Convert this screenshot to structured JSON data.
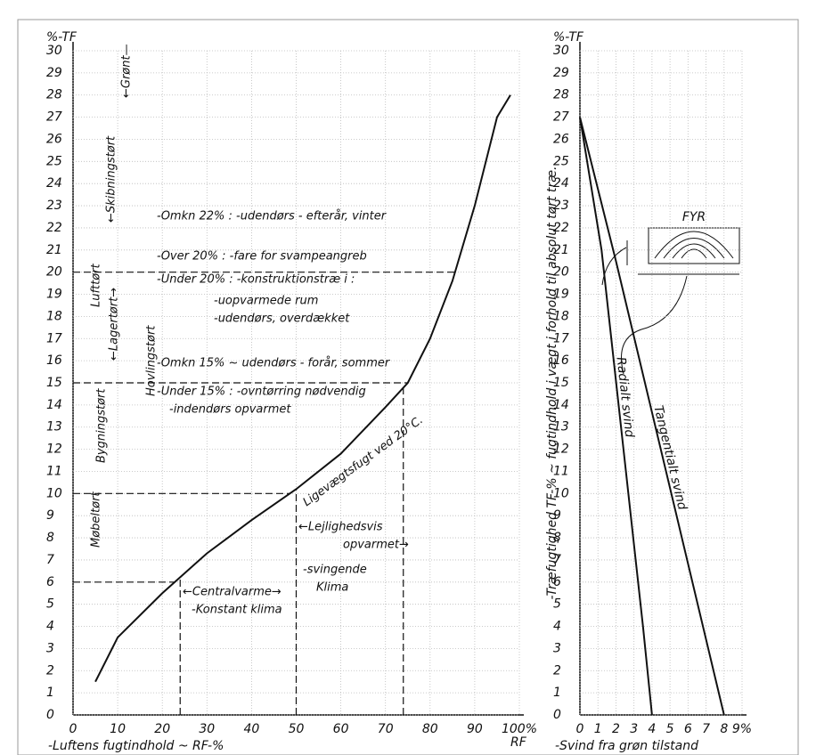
{
  "chart_data": [
    {
      "type": "line",
      "y_axis_title": "%-TF",
      "x_axis_title": "-Luftens fugtindhold ~ RF-%",
      "x_end_label": "RF",
      "x": [
        5,
        10,
        20,
        30,
        40,
        50,
        60,
        70,
        75,
        80,
        85,
        90,
        95,
        98
      ],
      "values": [
        1.5,
        3.5,
        5.5,
        7.3,
        8.8,
        10.2,
        11.8,
        13.9,
        15,
        17,
        19.6,
        23,
        27,
        28
      ],
      "color": "#111111",
      "xlim": [
        0,
        100
      ],
      "xticks": [
        0,
        10,
        20,
        30,
        40,
        50,
        60,
        70,
        80,
        90,
        {
          "value": 100,
          "label": "100%"
        }
      ],
      "ylim": [
        0,
        30
      ],
      "yticks": [
        0,
        1,
        2,
        3,
        4,
        5,
        6,
        7,
        8,
        9,
        10,
        11,
        12,
        13,
        14,
        15,
        16,
        17,
        18,
        19,
        20,
        21,
        22,
        23,
        24,
        25,
        26,
        27,
        28,
        29,
        30
      ],
      "grid": true,
      "hlines": [
        20,
        15,
        10,
        6
      ],
      "vlines": [
        24,
        50,
        74
      ],
      "annotations": [
        "-Omkn 22% : -udendørs - efterår, vinter",
        "-Over 20% : -fare for svampeangreb",
        "-Under 20% : -konstruktionstræ i :",
        "-uopvarmede rum",
        "-udendørs, overdækket",
        "-Omkn 15% ~ udendørs - forår, sommer",
        "-Under 15% : -ovntørring nødvendig",
        "-indendørs opvarmet",
        "Ligevægtsfugt ved 20°C.",
        "←Lejlighedsvis",
        "opvarmet→",
        "-svingende",
        "Klima",
        "←Centralvarme→",
        "-Konstant klima",
        "Lufttørt",
        "←Skibningstørt",
        "←Grønt—",
        "←Lagertørt→",
        "Bygningstørt",
        "Hovlingstørt",
        "Møbeltørt"
      ]
    },
    {
      "type": "line",
      "y_axis_title": "%-TF",
      "x_axis_title": "-Svind fra grøn tilstand",
      "y_label": "-Træfugtighed TF-% ~ fugtindhold i vægt i forhold til absolut tørt træ.",
      "inset_label": "FYR",
      "xlim": [
        0,
        9
      ],
      "xticks": [
        0,
        1,
        2,
        3,
        4,
        5,
        6,
        7,
        8,
        {
          "value": 9,
          "label": "9%"
        }
      ],
      "ylim": [
        0,
        30
      ],
      "yticks": [
        0,
        1,
        2,
        3,
        4,
        5,
        6,
        7,
        8,
        9,
        10,
        11,
        12,
        13,
        14,
        15,
        16,
        17,
        18,
        19,
        20,
        21,
        22,
        23,
        24,
        25,
        26,
        27,
        28,
        29,
        30
      ],
      "grid": true,
      "series": [
        {
          "name": "Radialt svind",
          "color": "#111111",
          "x": [
            0,
            1.2,
            3.5,
            4
          ],
          "values": [
            27,
            21,
            4,
            0
          ]
        },
        {
          "name": "Tangentialt svind",
          "color": "#111111",
          "x": [
            0,
            2,
            8
          ],
          "values": [
            27,
            20.5,
            0
          ]
        }
      ]
    }
  ]
}
